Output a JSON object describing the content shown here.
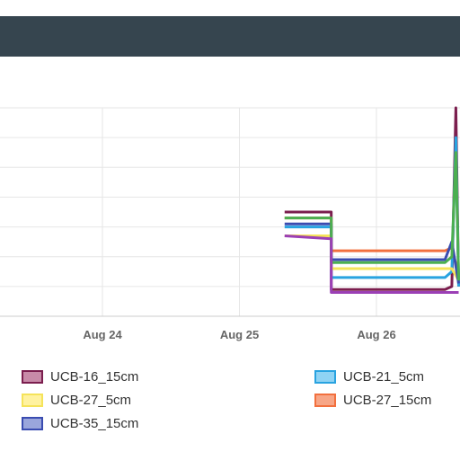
{
  "header": {
    "title": ""
  },
  "chart_data": {
    "type": "line",
    "title": "",
    "xlabel": "",
    "ylabel": "",
    "x_ticks": [
      "Aug 24",
      "Aug 25",
      "Aug 26"
    ],
    "grid": true,
    "legend_position": "bottom",
    "series": [
      {
        "name": "UCB-16_15cm",
        "color": "#7b1e4e",
        "fill": "#c88aa8",
        "points": [
          [
            25.33,
            0.35
          ],
          [
            25.67,
            0.35
          ],
          [
            25.67,
            0.09
          ],
          [
            26.5,
            0.09
          ],
          [
            26.55,
            0.1
          ],
          [
            26.58,
            0.7
          ],
          [
            26.6,
            0.1
          ]
        ]
      },
      {
        "name": "UCB-21_5cm",
        "color": "#29a3e0",
        "fill": "#8fd3f4",
        "points": [
          [
            25.33,
            0.3
          ],
          [
            25.67,
            0.3
          ],
          [
            25.67,
            0.13
          ],
          [
            26.5,
            0.13
          ],
          [
            26.55,
            0.15
          ],
          [
            26.58,
            0.6
          ],
          [
            26.6,
            0.1
          ]
        ]
      },
      {
        "name": "UCB-27_5cm",
        "color": "#f5e35a",
        "fill": "#fff2a0",
        "points": [
          [
            25.33,
            0.27
          ],
          [
            25.67,
            0.27
          ],
          [
            25.67,
            0.16
          ],
          [
            26.5,
            0.16
          ],
          [
            26.55,
            0.16
          ],
          [
            26.6,
            0.12
          ]
        ]
      },
      {
        "name": "UCB-27_15cm",
        "color": "#f2703e",
        "fill": "#f7a687",
        "points": [
          [
            25.33,
            0.33
          ],
          [
            25.67,
            0.33
          ],
          [
            25.67,
            0.22
          ],
          [
            26.5,
            0.22
          ],
          [
            26.55,
            0.23
          ],
          [
            26.6,
            0.14
          ]
        ]
      },
      {
        "name": "UCB-35_15cm",
        "color": "#3a4cb0",
        "fill": "#9aa6dc",
        "points": [
          [
            25.33,
            0.31
          ],
          [
            25.67,
            0.31
          ],
          [
            25.67,
            0.19
          ],
          [
            26.5,
            0.19
          ],
          [
            26.55,
            0.25
          ],
          [
            26.6,
            0.11
          ]
        ]
      },
      {
        "name": "",
        "color": "#4caf50",
        "fill": "#4caf50",
        "points": [
          [
            25.33,
            0.33
          ],
          [
            25.67,
            0.33
          ],
          [
            25.67,
            0.18
          ],
          [
            26.5,
            0.18
          ],
          [
            26.55,
            0.2
          ],
          [
            26.58,
            0.55
          ],
          [
            26.6,
            0.12
          ]
        ]
      },
      {
        "name": "",
        "color": "#9b3fb5",
        "fill": "#9b3fb5",
        "points": [
          [
            25.33,
            0.27
          ],
          [
            25.67,
            0.26
          ],
          [
            25.67,
            0.08
          ],
          [
            26.5,
            0.08
          ],
          [
            26.55,
            0.08
          ],
          [
            26.6,
            0.08
          ]
        ]
      }
    ],
    "xlim": [
      23.3,
      26.62
    ],
    "ylim": [
      0,
      0.7
    ]
  }
}
